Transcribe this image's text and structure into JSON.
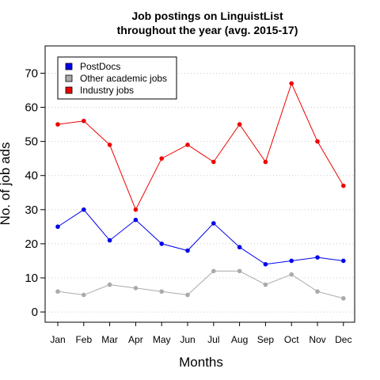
{
  "chart_data": {
    "type": "line",
    "title": "Job postings on LinguistList",
    "subtitle": "throughout the year (avg. 2015-17)",
    "xlabel": "Months",
    "ylabel": "No. of job ads",
    "categories": [
      "Jan",
      "Feb",
      "Mar",
      "Apr",
      "May",
      "Jun",
      "Jul",
      "Aug",
      "Sep",
      "Oct",
      "Nov",
      "Dec"
    ],
    "ylim": [
      -3,
      78
    ],
    "yticks": [
      0,
      10,
      20,
      30,
      40,
      50,
      60,
      70
    ],
    "grid": "horizontal dotted",
    "legend_position": "top-left",
    "series": [
      {
        "name": "PostDocs",
        "color": "#0000ee",
        "values": [
          25,
          30,
          21,
          27,
          20,
          18,
          26,
          19,
          14,
          15,
          16,
          15
        ]
      },
      {
        "name": "Other academic jobs",
        "color": "#aaaaaa",
        "values": [
          6,
          5,
          8,
          7,
          6,
          5,
          12,
          12,
          8,
          11,
          6,
          4
        ]
      },
      {
        "name": "Industry jobs",
        "color": "#ee0000",
        "values": [
          55,
          56,
          49,
          30,
          45,
          49,
          44,
          55,
          44,
          67,
          50,
          37
        ]
      }
    ]
  }
}
